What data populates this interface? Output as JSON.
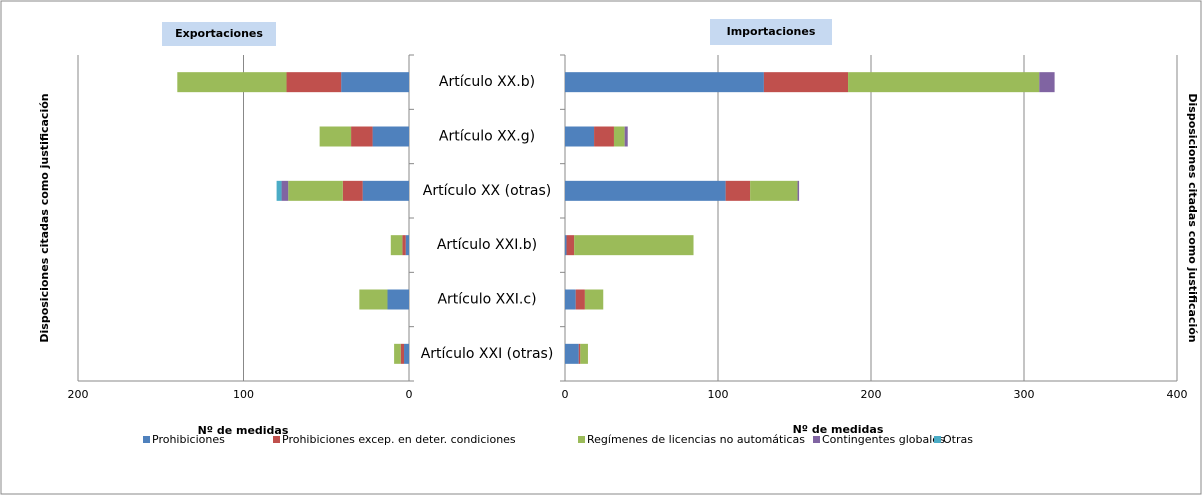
{
  "chart_data": [
    {
      "type": "bar",
      "orientation": "horizontal",
      "title": "Exportaciones",
      "x_label": "Nº de medidas",
      "y_label": "Disposiciones citadas como justificación",
      "categories": [
        "Artículo XX.b)",
        "Artículo XX.g)",
        "Artículo XX (otras)",
        "Artículo XXI.b)",
        "Artículo XXI.c)",
        "Artículo XXI (otras)"
      ],
      "xlim": [
        200,
        0
      ],
      "xticks": [
        200,
        100,
        0
      ],
      "grid": true,
      "legend": "bottom",
      "series": [
        {
          "name": "Prohibiciones",
          "color": "#4f81bd",
          "values": [
            41,
            22,
            28,
            2,
            13,
            3
          ]
        },
        {
          "name": "Prohibiciones excep. en deter. condiciones",
          "color": "#c0504d",
          "values": [
            33,
            13,
            12,
            2,
            0,
            2
          ]
        },
        {
          "name": "Regímenes de licencias no automáticas",
          "color": "#9bbb59",
          "values": [
            66,
            19,
            33,
            7,
            17,
            4
          ]
        },
        {
          "name": "Contingentes globales",
          "color": "#8064a2",
          "values": [
            0,
            0,
            4,
            0,
            0,
            0
          ]
        },
        {
          "name": "Otras",
          "color": "#4bacc6",
          "values": [
            0,
            0,
            3,
            0,
            0,
            0
          ]
        }
      ]
    },
    {
      "type": "bar",
      "orientation": "horizontal",
      "title": "Importaciones",
      "x_label": "Nº de medidas",
      "y_label": "Disposiciones citadas como justificación",
      "xlim": [
        0,
        400
      ],
      "xticks": [
        0,
        100,
        200,
        300,
        400
      ],
      "grid": true,
      "series": [
        {
          "values": [
            130,
            19,
            105,
            1,
            7,
            9
          ]
        },
        {
          "values": [
            55,
            13,
            16,
            5,
            6,
            1
          ]
        },
        {
          "values": [
            125,
            7,
            31,
            78,
            12,
            5
          ]
        },
        {
          "values": [
            10,
            2,
            1,
            0,
            0,
            0
          ]
        },
        {
          "values": [
            0,
            0,
            0,
            0,
            0,
            0
          ]
        }
      ]
    }
  ]
}
